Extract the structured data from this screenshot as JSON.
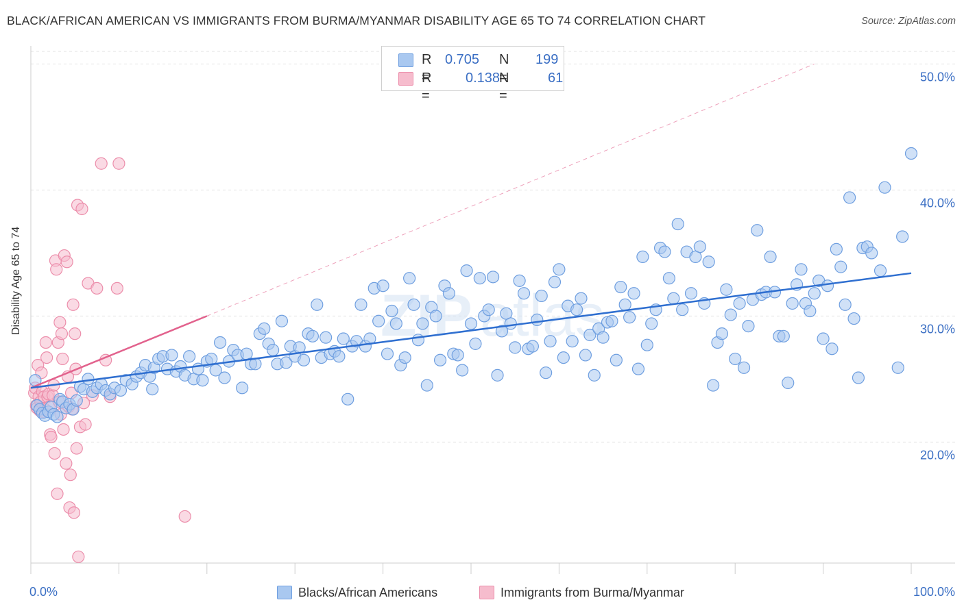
{
  "title": "BLACK/AFRICAN AMERICAN VS IMMIGRANTS FROM BURMA/MYANMAR DISABILITY AGE 65 TO 74 CORRELATION CHART",
  "source": "Source: ZipAtlas.com",
  "watermark": "ZIPatlas",
  "colors": {
    "blue_fill": "#a9c8f0",
    "blue_stroke": "#6f9fe0",
    "blue_line": "#2f6fd0",
    "pink_fill": "#f6bccd",
    "pink_stroke": "#ec8eab",
    "pink_line": "#e2628d",
    "tick_text": "#3b6fc4"
  },
  "legend": {
    "rows": [
      {
        "r_label": "R =",
        "r_value": "0.705",
        "n_label": "N =",
        "n_value": "199"
      },
      {
        "r_label": "R =",
        "r_value": "0.138",
        "n_label": "N =",
        "n_value": "61"
      }
    ]
  },
  "chart_data": {
    "type": "scatter",
    "title": "BLACK/AFRICAN AMERICAN VS IMMIGRANTS FROM BURMA/MYANMAR DISABILITY AGE 65 TO 74 CORRELATION CHART",
    "xlabel": "",
    "ylabel": "Disability Age 65 to 74",
    "xlim": [
      0,
      100
    ],
    "ylim": [
      10.4,
      51
    ],
    "x_tick_labels": [
      "0.0%",
      "100.0%"
    ],
    "y_ticks": [
      20,
      30,
      40,
      50
    ],
    "y_tick_labels": [
      "20.0%",
      "30.0%",
      "40.0%",
      "50.0%"
    ],
    "grid": true,
    "series": [
      {
        "name": "Blacks/African Americans",
        "trend": {
          "x0": 0,
          "y0": 24.3,
          "x1": 100,
          "y1": 33.4
        },
        "points": [
          [
            0.5,
            24.9
          ],
          [
            0.7,
            22.9
          ],
          [
            1.0,
            22.6
          ],
          [
            1.3,
            22.3
          ],
          [
            1.6,
            22.1
          ],
          [
            2.0,
            22.4
          ],
          [
            2.3,
            22.8
          ],
          [
            2.6,
            22.2
          ],
          [
            3.0,
            22.0
          ],
          [
            3.3,
            23.4
          ],
          [
            3.6,
            23.2
          ],
          [
            4.0,
            22.7
          ],
          [
            4.4,
            23.0
          ],
          [
            4.8,
            22.6
          ],
          [
            5.2,
            23.3
          ],
          [
            5.6,
            24.4
          ],
          [
            6.0,
            24.2
          ],
          [
            6.5,
            25.0
          ],
          [
            7.0,
            24.0
          ],
          [
            7.5,
            24.3
          ],
          [
            8.0,
            24.6
          ],
          [
            8.5,
            24.1
          ],
          [
            9.0,
            23.8
          ],
          [
            9.5,
            24.3
          ],
          [
            10.2,
            24.1
          ],
          [
            10.8,
            24.9
          ],
          [
            11.5,
            24.6
          ],
          [
            12.0,
            25.2
          ],
          [
            12.5,
            25.5
          ],
          [
            13.0,
            26.1
          ],
          [
            13.5,
            25.2
          ],
          [
            13.8,
            24.2
          ],
          [
            14.0,
            25.9
          ],
          [
            14.5,
            26.6
          ],
          [
            15.0,
            26.8
          ],
          [
            15.5,
            25.8
          ],
          [
            16.0,
            26.9
          ],
          [
            16.5,
            25.6
          ],
          [
            17.0,
            26.0
          ],
          [
            17.5,
            25.3
          ],
          [
            18.0,
            26.8
          ],
          [
            18.5,
            25.0
          ],
          [
            19.0,
            25.8
          ],
          [
            19.5,
            24.9
          ],
          [
            20.0,
            26.4
          ],
          [
            20.5,
            26.6
          ],
          [
            21.0,
            25.7
          ],
          [
            21.5,
            27.9
          ],
          [
            22.0,
            25.1
          ],
          [
            22.5,
            26.4
          ],
          [
            23.0,
            27.3
          ],
          [
            23.5,
            26.9
          ],
          [
            24.0,
            24.3
          ],
          [
            24.5,
            27.0
          ],
          [
            25.0,
            26.2
          ],
          [
            25.5,
            26.2
          ],
          [
            26.0,
            28.6
          ],
          [
            26.5,
            29.0
          ],
          [
            27.0,
            27.8
          ],
          [
            27.5,
            27.3
          ],
          [
            28.0,
            26.2
          ],
          [
            28.5,
            29.6
          ],
          [
            29.0,
            26.3
          ],
          [
            29.5,
            27.6
          ],
          [
            30.0,
            26.8
          ],
          [
            30.5,
            27.5
          ],
          [
            31.0,
            26.5
          ],
          [
            31.5,
            28.6
          ],
          [
            32.0,
            28.4
          ],
          [
            32.5,
            30.9
          ],
          [
            33.0,
            26.7
          ],
          [
            33.5,
            28.3
          ],
          [
            34.0,
            27.0
          ],
          [
            34.5,
            27.2
          ],
          [
            35.0,
            26.8
          ],
          [
            35.5,
            28.2
          ],
          [
            36.0,
            23.4
          ],
          [
            36.5,
            27.6
          ],
          [
            37.0,
            28.0
          ],
          [
            37.5,
            30.9
          ],
          [
            38.0,
            27.6
          ],
          [
            38.5,
            28.2
          ],
          [
            39.0,
            32.2
          ],
          [
            39.5,
            29.6
          ],
          [
            40.0,
            32.4
          ],
          [
            40.5,
            27.0
          ],
          [
            41.0,
            30.4
          ],
          [
            41.5,
            29.4
          ],
          [
            42.0,
            26.1
          ],
          [
            42.5,
            26.7
          ],
          [
            43.0,
            33.0
          ],
          [
            43.5,
            30.9
          ],
          [
            44.0,
            28.1
          ],
          [
            44.5,
            29.4
          ],
          [
            45.0,
            24.5
          ],
          [
            45.5,
            30.7
          ],
          [
            46.0,
            30.0
          ],
          [
            46.5,
            26.5
          ],
          [
            47.0,
            32.4
          ],
          [
            47.5,
            31.8
          ],
          [
            48.0,
            27.0
          ],
          [
            48.5,
            26.9
          ],
          [
            49.0,
            25.7
          ],
          [
            49.5,
            33.6
          ],
          [
            50.0,
            29.4
          ],
          [
            50.5,
            27.8
          ],
          [
            51.0,
            33.0
          ],
          [
            51.5,
            30.0
          ],
          [
            52.0,
            30.5
          ],
          [
            52.5,
            33.1
          ],
          [
            53.0,
            25.3
          ],
          [
            53.5,
            28.8
          ],
          [
            54.0,
            30.2
          ],
          [
            54.5,
            29.4
          ],
          [
            55.0,
            27.5
          ],
          [
            55.5,
            32.8
          ],
          [
            56.0,
            31.8
          ],
          [
            56.5,
            27.4
          ],
          [
            57.0,
            27.6
          ],
          [
            57.5,
            29.7
          ],
          [
            58.0,
            31.6
          ],
          [
            58.5,
            25.5
          ],
          [
            59.0,
            28.0
          ],
          [
            59.5,
            32.7
          ],
          [
            60.0,
            33.7
          ],
          [
            60.5,
            26.7
          ],
          [
            61.0,
            30.8
          ],
          [
            61.5,
            28.0
          ],
          [
            62.0,
            30.5
          ],
          [
            62.5,
            31.4
          ],
          [
            63.0,
            26.9
          ],
          [
            63.5,
            28.5
          ],
          [
            64.0,
            25.3
          ],
          [
            64.5,
            29.0
          ],
          [
            65.0,
            28.3
          ],
          [
            65.5,
            29.5
          ],
          [
            66.0,
            29.6
          ],
          [
            66.5,
            26.5
          ],
          [
            67.0,
            32.3
          ],
          [
            67.5,
            30.9
          ],
          [
            68.0,
            29.9
          ],
          [
            68.5,
            31.8
          ],
          [
            69.0,
            25.8
          ],
          [
            69.5,
            34.7
          ],
          [
            70.0,
            27.7
          ],
          [
            70.5,
            29.4
          ],
          [
            71.0,
            30.5
          ],
          [
            71.5,
            35.4
          ],
          [
            72.0,
            35.1
          ],
          [
            72.5,
            33.0
          ],
          [
            73.0,
            31.4
          ],
          [
            73.5,
            37.3
          ],
          [
            74.0,
            30.5
          ],
          [
            74.5,
            35.1
          ],
          [
            75.0,
            31.8
          ],
          [
            75.5,
            34.7
          ],
          [
            76.0,
            35.5
          ],
          [
            76.5,
            31.0
          ],
          [
            77.0,
            34.3
          ],
          [
            77.5,
            24.5
          ],
          [
            78.0,
            27.9
          ],
          [
            78.5,
            28.6
          ],
          [
            79.0,
            32.1
          ],
          [
            79.5,
            30.1
          ],
          [
            80.0,
            26.6
          ],
          [
            80.5,
            31.0
          ],
          [
            81.0,
            25.9
          ],
          [
            81.5,
            29.2
          ],
          [
            82.0,
            31.3
          ],
          [
            82.5,
            36.8
          ],
          [
            83.0,
            31.7
          ],
          [
            83.5,
            31.9
          ],
          [
            84.0,
            34.7
          ],
          [
            84.5,
            31.9
          ],
          [
            85.0,
            28.4
          ],
          [
            85.5,
            28.4
          ],
          [
            86.0,
            24.7
          ],
          [
            86.5,
            31.0
          ],
          [
            87.0,
            32.5
          ],
          [
            87.5,
            33.7
          ],
          [
            88.0,
            31.0
          ],
          [
            88.5,
            30.4
          ],
          [
            89.0,
            31.8
          ],
          [
            89.5,
            32.8
          ],
          [
            90.0,
            28.2
          ],
          [
            90.5,
            32.4
          ],
          [
            91.0,
            27.4
          ],
          [
            91.5,
            35.3
          ],
          [
            92.0,
            33.9
          ],
          [
            92.5,
            30.9
          ],
          [
            93.0,
            39.4
          ],
          [
            93.5,
            29.8
          ],
          [
            94.0,
            25.1
          ],
          [
            94.5,
            35.4
          ],
          [
            95.0,
            35.5
          ],
          [
            95.5,
            35.0
          ],
          [
            96.5,
            33.6
          ],
          [
            97.0,
            40.2
          ],
          [
            98.5,
            25.9
          ],
          [
            99.0,
            36.3
          ],
          [
            100.0,
            42.9
          ]
        ]
      },
      {
        "name": "Immigrants from Burma/Myanmar",
        "trend": {
          "x0": 0,
          "y0": 24.3,
          "x1": 20,
          "y1": 30.0
        },
        "projection": {
          "x0": 20,
          "y0": 30.0,
          "x1": 89,
          "y1": 50.0
        },
        "points": [
          [
            0.4,
            23.9
          ],
          [
            0.5,
            24.3
          ],
          [
            0.6,
            22.9
          ],
          [
            0.7,
            22.7
          ],
          [
            0.8,
            26.1
          ],
          [
            0.9,
            23.6
          ],
          [
            1.0,
            22.5
          ],
          [
            1.1,
            23.2
          ],
          [
            1.2,
            25.5
          ],
          [
            1.3,
            24.0
          ],
          [
            1.4,
            22.4
          ],
          [
            1.5,
            23.6
          ],
          [
            1.6,
            22.6
          ],
          [
            1.7,
            27.9
          ],
          [
            1.8,
            26.7
          ],
          [
            1.9,
            23.6
          ],
          [
            2.0,
            23.8
          ],
          [
            2.1,
            22.8
          ],
          [
            2.2,
            20.6
          ],
          [
            2.3,
            20.4
          ],
          [
            2.5,
            23.7
          ],
          [
            2.6,
            24.5
          ],
          [
            2.7,
            19.1
          ],
          [
            2.8,
            34.4
          ],
          [
            2.9,
            33.7
          ],
          [
            3.0,
            15.9
          ],
          [
            3.1,
            27.9
          ],
          [
            3.2,
            23.2
          ],
          [
            3.3,
            29.5
          ],
          [
            3.4,
            22.2
          ],
          [
            3.5,
            28.6
          ],
          [
            3.6,
            26.6
          ],
          [
            3.7,
            21.0
          ],
          [
            3.8,
            34.8
          ],
          [
            4.0,
            18.3
          ],
          [
            4.1,
            34.3
          ],
          [
            4.2,
            25.2
          ],
          [
            4.3,
            22.8
          ],
          [
            4.4,
            14.8
          ],
          [
            4.5,
            17.4
          ],
          [
            4.6,
            23.9
          ],
          [
            4.7,
            22.6
          ],
          [
            4.8,
            30.9
          ],
          [
            4.9,
            14.4
          ],
          [
            5.0,
            28.6
          ],
          [
            5.1,
            25.8
          ],
          [
            5.2,
            19.5
          ],
          [
            5.3,
            38.8
          ],
          [
            5.4,
            10.9
          ],
          [
            5.6,
            21.2
          ],
          [
            5.8,
            38.5
          ],
          [
            6.0,
            23.1
          ],
          [
            6.2,
            21.4
          ],
          [
            6.5,
            32.6
          ],
          [
            7.0,
            23.7
          ],
          [
            7.5,
            32.2
          ],
          [
            8.0,
            42.1
          ],
          [
            8.5,
            26.5
          ],
          [
            9.0,
            23.6
          ],
          [
            9.8,
            32.2
          ],
          [
            10.0,
            42.1
          ],
          [
            17.5,
            14.1
          ]
        ]
      }
    ]
  },
  "bottom_legend": {
    "items": [
      {
        "label": "Blacks/African Americans"
      },
      {
        "label": "Immigrants from Burma/Myanmar"
      }
    ]
  }
}
